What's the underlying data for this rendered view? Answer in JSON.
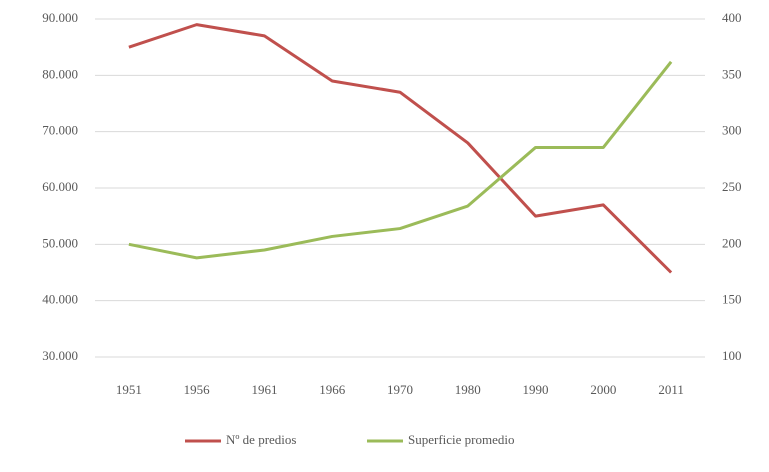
{
  "chart_data": {
    "type": "line",
    "categories": [
      "1951",
      "1956",
      "1961",
      "1966",
      "1970",
      "1980",
      "1990",
      "2000",
      "2011"
    ],
    "series": [
      {
        "name": "Nº de predios",
        "color": "#c0504d",
        "values": [
          85000,
          89000,
          87000,
          79000,
          77000,
          68000,
          55000,
          57000,
          45000
        ]
      },
      {
        "name": "Superficie promedio",
        "color": "#9bbb59",
        "axis": "y2",
        "values": [
          200,
          188,
          195,
          207,
          214,
          234,
          286,
          286,
          362
        ]
      }
    ],
    "ylim": [
      30000,
      90000
    ],
    "yticks": [
      {
        "value": 30000,
        "label": "30.000"
      },
      {
        "value": 40000,
        "label": "40.000"
      },
      {
        "value": 50000,
        "label": "50.000"
      },
      {
        "value": 60000,
        "label": "60.000"
      },
      {
        "value": 70000,
        "label": "70.000"
      },
      {
        "value": 80000,
        "label": "80.000"
      },
      {
        "value": 90000,
        "label": "90.000"
      }
    ],
    "y2lim": [
      100,
      400
    ],
    "y2ticks": [
      100,
      150,
      200,
      250,
      300,
      350,
      400
    ],
    "grid": true,
    "legend": "bottom"
  }
}
